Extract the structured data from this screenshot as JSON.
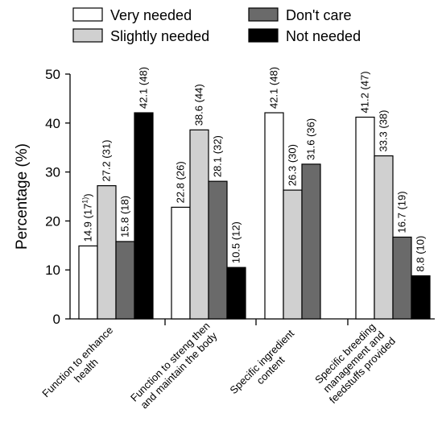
{
  "chart_data": {
    "type": "bar",
    "ylabel": "Percentage (%)",
    "ylim": [
      0,
      50
    ],
    "yticks": [
      "0",
      "10",
      "20",
      "30",
      "40",
      "50"
    ],
    "legend_position": "top",
    "categories": [
      [
        "Function to enhance",
        "health"
      ],
      [
        "Function to streng then",
        "and maintain the body"
      ],
      [
        "Specific ingredient",
        "content"
      ],
      [
        "Specific breeding",
        "management and",
        "feedstuffs provided"
      ]
    ],
    "series": [
      {
        "name": "Very needed",
        "color": "#ffffff",
        "values": [
          14.9,
          22.8,
          42.1,
          41.2
        ],
        "labels": [
          "14.9 (17",
          "22.8 (26)",
          "42.1 (48)",
          "41.2 (47)"
        ]
      },
      {
        "name": "Slightly needed",
        "color": "#d0d0d0",
        "values": [
          27.2,
          38.6,
          26.3,
          33.3
        ],
        "labels": [
          "27.2 (31)",
          "38.6 (44)",
          "26.3 (30)",
          "33.3 (38)"
        ]
      },
      {
        "name": "Don't care",
        "color": "#6a6a6a",
        "values": [
          15.8,
          28.1,
          31.6,
          16.7
        ],
        "labels": [
          "15.8 (18)",
          "28.1 (32)",
          "31.6 (36)",
          "16.7 (19)"
        ]
      },
      {
        "name": "Not needed",
        "color": "#000000",
        "values": [
          42.1,
          10.5,
          null,
          8.8
        ],
        "labels": [
          "42.1 (48)",
          "10.5 (12)",
          null,
          "8.8 (10)"
        ]
      }
    ],
    "footnote_marker": {
      "series": 0,
      "category": 0,
      "sup": "1)",
      "close": ")"
    }
  }
}
